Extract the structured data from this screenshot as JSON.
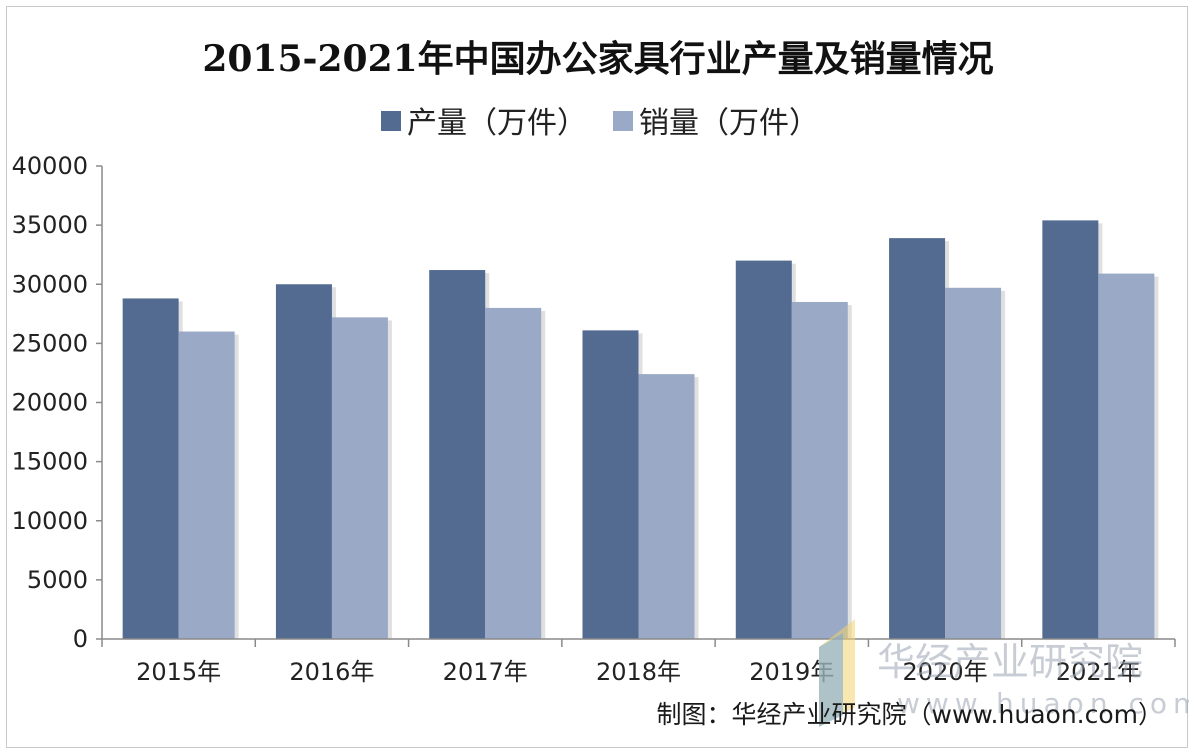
{
  "colors": {
    "production": "#536a91",
    "sales": "#9aa9c5",
    "axis": "#8a8a8a",
    "watermark": "#9aa4b3"
  },
  "source": "制图：华经产业研究院（www.huaon.com）",
  "watermark": {
    "name": "华经产业研究院",
    "url": "www.huaon.com"
  },
  "chart_data": {
    "type": "bar",
    "title": "2015-2021年中国办公家具行业产量及销量情况",
    "categories": [
      "2015年",
      "2016年",
      "2017年",
      "2018年",
      "2019年",
      "2020年",
      "2021年"
    ],
    "series": [
      {
        "name": "产量（万件）",
        "values": [
          28800,
          30000,
          31200,
          26100,
          32000,
          33900,
          35400
        ]
      },
      {
        "name": "销量（万件）",
        "values": [
          26000,
          27200,
          28000,
          22400,
          28500,
          29700,
          30900
        ]
      }
    ],
    "ylim": [
      0,
      40000
    ],
    "yticks": [
      "0",
      "5000",
      "10000",
      "15000",
      "20000",
      "25000",
      "30000",
      "35000",
      "40000"
    ],
    "legend": "top-center",
    "grid": false
  }
}
